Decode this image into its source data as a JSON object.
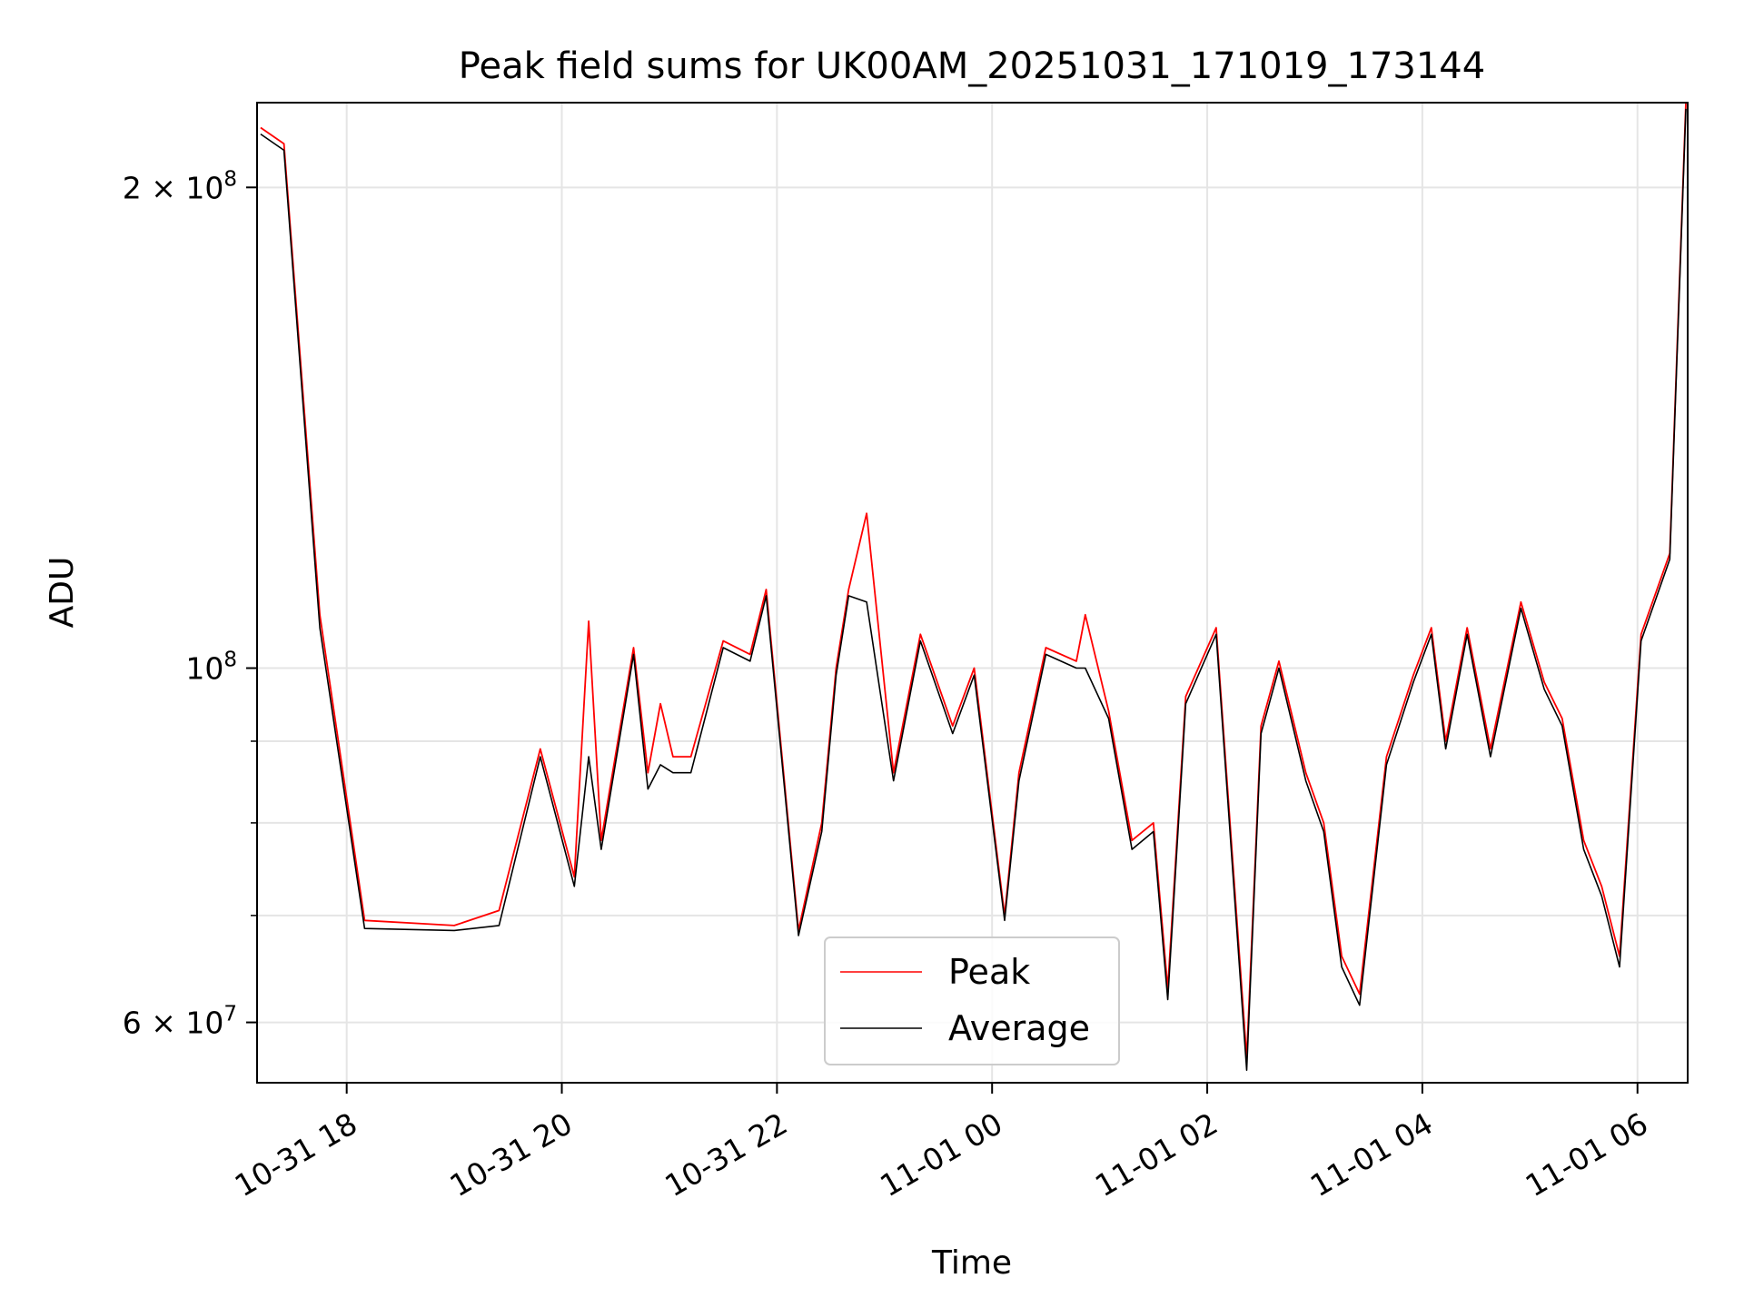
{
  "chart_data": {
    "type": "line",
    "title": "Peak field sums for UK00AM_20251031_171019_173144",
    "xlabel": "Time",
    "ylabel": "ADU",
    "yscale": "log",
    "grid": true,
    "legend_position": "bottom-center",
    "xlim": [
      "2025-10-31 17:10",
      "2025-11-01 06:28"
    ],
    "ylim": [
      55000000,
      226000000
    ],
    "x_ticks": [
      {
        "t": "2025-10-31 18:00",
        "label": "10-31 18"
      },
      {
        "t": "2025-10-31 20:00",
        "label": "10-31 20"
      },
      {
        "t": "2025-10-31 22:00",
        "label": "10-31 22"
      },
      {
        "t": "2025-11-01 00:00",
        "label": "11-01 00"
      },
      {
        "t": "2025-11-01 02:00",
        "label": "11-01 02"
      },
      {
        "t": "2025-11-01 04:00",
        "label": "11-01 04"
      },
      {
        "t": "2025-11-01 06:00",
        "label": "11-01 06"
      }
    ],
    "y_major_ticks": [
      {
        "v": 60000000,
        "label_base": "6 × 10",
        "label_exp": "7"
      },
      {
        "v": 100000000,
        "label_base": "10",
        "label_exp": "8"
      },
      {
        "v": 200000000,
        "label_base": "2 × 10",
        "label_exp": "8"
      }
    ],
    "y_minor_ticks": [
      70000000,
      80000000,
      90000000
    ],
    "series": [
      {
        "name": "Peak",
        "color": "#ff0000",
        "x": [
          "2025-10-31 17:12",
          "2025-10-31 17:25",
          "2025-10-31 17:45",
          "2025-10-31 18:10",
          "2025-10-31 19:00",
          "2025-10-31 19:25",
          "2025-10-31 19:48",
          "2025-10-31 20:07",
          "2025-10-31 20:15",
          "2025-10-31 20:22",
          "2025-10-31 20:40",
          "2025-10-31 20:48",
          "2025-10-31 20:55",
          "2025-10-31 21:02",
          "2025-10-31 21:12",
          "2025-10-31 21:30",
          "2025-10-31 21:45",
          "2025-10-31 21:54",
          "2025-10-31 22:12",
          "2025-10-31 22:25",
          "2025-10-31 22:33",
          "2025-10-31 22:40",
          "2025-10-31 22:50",
          "2025-10-31 23:05",
          "2025-10-31 23:20",
          "2025-10-31 23:38",
          "2025-10-31 23:50",
          "2025-11-01 00:07",
          "2025-11-01 00:15",
          "2025-11-01 00:30",
          "2025-11-01 00:47",
          "2025-11-01 00:52",
          "2025-11-01 01:05",
          "2025-11-01 01:18",
          "2025-11-01 01:30",
          "2025-11-01 01:38",
          "2025-11-01 01:48",
          "2025-11-01 02:05",
          "2025-11-01 02:22",
          "2025-11-01 02:30",
          "2025-11-01 02:40",
          "2025-11-01 02:55",
          "2025-11-01 03:05",
          "2025-11-01 03:15",
          "2025-11-01 03:25",
          "2025-11-01 03:40",
          "2025-11-01 03:55",
          "2025-11-01 04:05",
          "2025-11-01 04:13",
          "2025-11-01 04:25",
          "2025-11-01 04:38",
          "2025-11-01 04:55",
          "2025-11-01 05:08",
          "2025-11-01 05:18",
          "2025-11-01 05:30",
          "2025-11-01 05:40",
          "2025-11-01 05:50",
          "2025-11-01 06:02",
          "2025-11-01 06:18",
          "2025-11-01 06:27"
        ],
        "y": [
          218000000,
          213000000,
          108000000,
          69500000,
          69000000,
          70500000,
          89000000,
          74000000,
          107000000,
          78000000,
          103000000,
          86000000,
          95000000,
          88000000,
          88000000,
          104000000,
          102000000,
          112000000,
          68500000,
          80000000,
          100000000,
          112000000,
          125000000,
          86000000,
          105000000,
          92000000,
          100000000,
          70000000,
          86000000,
          103000000,
          101000000,
          108000000,
          94000000,
          78000000,
          80000000,
          63000000,
          96000000,
          106000000,
          57000000,
          92000000,
          101000000,
          86000000,
          80000000,
          66000000,
          62500000,
          88000000,
          99000000,
          106000000,
          90000000,
          106000000,
          89000000,
          110000000,
          98000000,
          93000000,
          78000000,
          73000000,
          66000000,
          105000000,
          118000000,
          226000000
        ]
      },
      {
        "name": "Average",
        "color": "#000000",
        "x": [
          "2025-10-31 17:12",
          "2025-10-31 17:25",
          "2025-10-31 17:45",
          "2025-10-31 18:10",
          "2025-10-31 19:00",
          "2025-10-31 19:25",
          "2025-10-31 19:48",
          "2025-10-31 20:07",
          "2025-10-31 20:15",
          "2025-10-31 20:22",
          "2025-10-31 20:40",
          "2025-10-31 20:48",
          "2025-10-31 20:55",
          "2025-10-31 21:02",
          "2025-10-31 21:12",
          "2025-10-31 21:30",
          "2025-10-31 21:45",
          "2025-10-31 21:54",
          "2025-10-31 22:12",
          "2025-10-31 22:25",
          "2025-10-31 22:33",
          "2025-10-31 22:40",
          "2025-10-31 22:50",
          "2025-10-31 23:05",
          "2025-10-31 23:20",
          "2025-10-31 23:38",
          "2025-10-31 23:50",
          "2025-11-01 00:07",
          "2025-11-01 00:15",
          "2025-11-01 00:30",
          "2025-11-01 00:47",
          "2025-11-01 00:52",
          "2025-11-01 01:05",
          "2025-11-01 01:18",
          "2025-11-01 01:30",
          "2025-11-01 01:38",
          "2025-11-01 01:48",
          "2025-11-01 02:05",
          "2025-11-01 02:22",
          "2025-11-01 02:30",
          "2025-11-01 02:40",
          "2025-11-01 02:55",
          "2025-11-01 03:05",
          "2025-11-01 03:15",
          "2025-11-01 03:25",
          "2025-11-01 03:40",
          "2025-11-01 03:55",
          "2025-11-01 04:05",
          "2025-11-01 04:13",
          "2025-11-01 04:25",
          "2025-11-01 04:38",
          "2025-11-01 04:55",
          "2025-11-01 05:08",
          "2025-11-01 05:18",
          "2025-11-01 05:30",
          "2025-11-01 05:40",
          "2025-11-01 05:50",
          "2025-11-01 06:02",
          "2025-11-01 06:18",
          "2025-11-01 06:27"
        ],
        "y": [
          216000000,
          211000000,
          106000000,
          68700000,
          68500000,
          69000000,
          88000000,
          73000000,
          88000000,
          77000000,
          102000000,
          84000000,
          87000000,
          86000000,
          86000000,
          103000000,
          101000000,
          111000000,
          68000000,
          79000000,
          99000000,
          111000000,
          110000000,
          85000000,
          104000000,
          91000000,
          99000000,
          69500000,
          85000000,
          102000000,
          100000000,
          100000000,
          93000000,
          77000000,
          79000000,
          62000000,
          95000000,
          105000000,
          56000000,
          91000000,
          100000000,
          85000000,
          79000000,
          65000000,
          61500000,
          87000000,
          98000000,
          105000000,
          89000000,
          105000000,
          88000000,
          109000000,
          97000000,
          92000000,
          77000000,
          72000000,
          65000000,
          104000000,
          117000000,
          224000000
        ]
      }
    ]
  }
}
